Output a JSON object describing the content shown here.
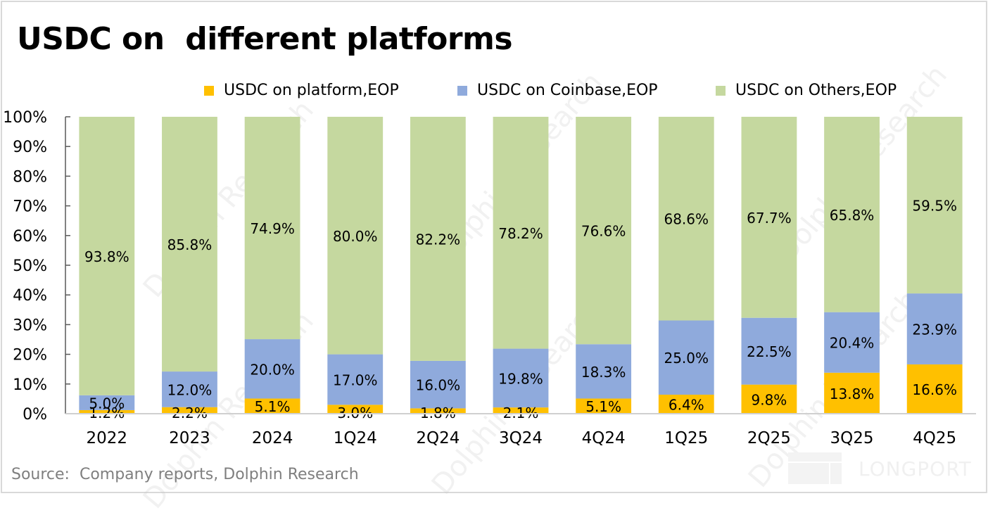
{
  "title": "USDC on  different platforms",
  "source": "Source:  Company reports, Dolphin Research",
  "watermarks": {
    "diagonal": "Dolphin Research",
    "corner": "LONGPORT"
  },
  "colors": {
    "platform": "#ffc000",
    "coinbase": "#8faadc",
    "others": "#c5d89f",
    "axis": "#595959",
    "baseline": "#d0d0d0",
    "label": "#000000",
    "source": "#7f7f7f"
  },
  "chart_data": {
    "type": "bar",
    "stacked": true,
    "title": "USDC on  different platforms",
    "xlabel": "",
    "ylabel": "",
    "ylim": [
      0,
      100
    ],
    "yticks": [
      "0%",
      "10%",
      "20%",
      "30%",
      "40%",
      "50%",
      "60%",
      "70%",
      "80%",
      "90%",
      "100%"
    ],
    "grid": false,
    "legend_position": "top",
    "categories": [
      "2022",
      "2023",
      "2024",
      "1Q24",
      "2Q24",
      "3Q24",
      "4Q24",
      "1Q25",
      "2Q25",
      "3Q25",
      "4Q25"
    ],
    "series": [
      {
        "name": "USDC on platform,EOP",
        "color_key": "platform",
        "values": [
          1.2,
          2.2,
          5.1,
          3.0,
          1.8,
          2.1,
          5.1,
          6.4,
          9.8,
          13.8,
          16.6
        ],
        "labels": [
          "1.2%",
          "2.2%",
          "5.1%",
          "3.0%",
          "1.8%",
          "2.1%",
          "5.1%",
          "6.4%",
          "9.8%",
          "13.8%",
          "16.6%"
        ]
      },
      {
        "name": "USDC on Coinbase,EOP",
        "color_key": "coinbase",
        "values": [
          5.0,
          12.0,
          20.0,
          17.0,
          16.0,
          19.8,
          18.3,
          25.0,
          22.5,
          20.4,
          23.9
        ],
        "labels": [
          "5.0%",
          "12.0%",
          "20.0%",
          "17.0%",
          "16.0%",
          "19.8%",
          "18.3%",
          "25.0%",
          "22.5%",
          "20.4%",
          "23.9%"
        ]
      },
      {
        "name": "USDC on Others,EOP",
        "color_key": "others",
        "values": [
          93.8,
          85.8,
          74.9,
          80.0,
          82.2,
          78.2,
          76.6,
          68.6,
          67.7,
          65.8,
          59.5
        ],
        "labels": [
          "93.8%",
          "85.8%",
          "74.9%",
          "80.0%",
          "82.2%",
          "78.2%",
          "76.6%",
          "68.6%",
          "67.7%",
          "65.8%",
          "59.5%"
        ]
      }
    ]
  }
}
